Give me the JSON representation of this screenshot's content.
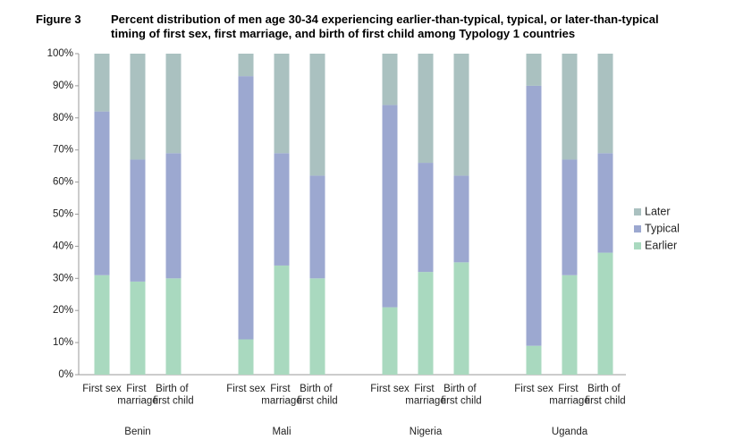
{
  "chart_data": {
    "type": "stacked-bar",
    "figure_label": "Figure 3",
    "title": "Percent distribution of men age 30-34 experiencing earlier-than-typical, typical, or later-than-typical timing of first sex, first marriage, and birth of first child among Typology 1 countries",
    "groups": [
      "Benin",
      "Mali",
      "Nigeria",
      "Uganda"
    ],
    "categories": [
      "First sex",
      "First marriage",
      "Birth of first child",
      "First sex",
      "First marriage",
      "Birth of first child",
      "First sex",
      "First marriage",
      "Birth of first child",
      "First sex",
      "First marriage",
      "Birth of first child"
    ],
    "series": [
      {
        "name": "Earlier",
        "color": "#a9d9bf",
        "values": [
          31,
          29,
          30,
          11,
          34,
          30,
          21,
          32,
          35,
          9,
          31,
          38
        ]
      },
      {
        "name": "Typical",
        "color": "#9ca8d0",
        "values": [
          51,
          38,
          39,
          82,
          35,
          32,
          63,
          34,
          27,
          81,
          36,
          31
        ]
      },
      {
        "name": "Later",
        "color": "#aac1c0",
        "values": [
          18,
          33,
          31,
          7,
          31,
          38,
          16,
          34,
          38,
          10,
          33,
          31
        ]
      }
    ],
    "ylim": [
      0,
      100
    ],
    "yticks": [
      {
        "value": 0,
        "label": "0%"
      },
      {
        "value": 10,
        "label": "10%"
      },
      {
        "value": 20,
        "label": "20%"
      },
      {
        "value": 30,
        "label": "30%"
      },
      {
        "value": 40,
        "label": "40%"
      },
      {
        "value": 50,
        "label": "50%"
      },
      {
        "value": 60,
        "label": "60%"
      },
      {
        "value": 70,
        "label": "70%"
      },
      {
        "value": 80,
        "label": "80%"
      },
      {
        "value": 90,
        "label": "90%"
      },
      {
        "value": 100,
        "label": "100%"
      }
    ],
    "legend": "right"
  }
}
